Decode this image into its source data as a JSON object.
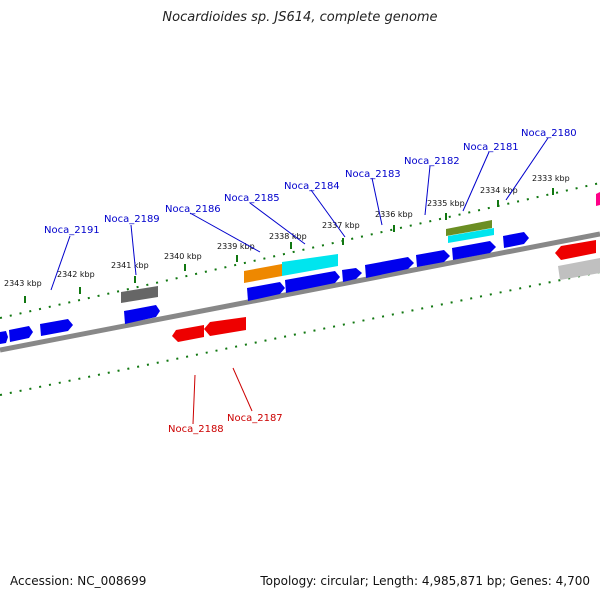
{
  "title": "Nocardioides sp. JS614, complete genome",
  "footer": {
    "accession": "Accession: NC_008699",
    "topology": "Topology: circular; Length: 4,985,871 bp; Genes: 4,700"
  },
  "colors": {
    "forward_gene": "#0000ee",
    "reverse_gene": "#ee0000",
    "backbone": "#888888",
    "tick_marks": "#117711",
    "gray_feature": "#666666",
    "cyan_feature": "#00e5ee",
    "orange_feature": "#ee8800",
    "olive_feature": "#6b8e23",
    "magenta_feature": "#ff0088",
    "label_forward": "#0000cc",
    "label_reverse": "#cc0000"
  },
  "scale_labels": [
    "2343 kbp",
    "2342 kbp",
    "2341 kbp",
    "2340 kbp",
    "2339 kbp",
    "2338 kbp",
    "2337 kbp",
    "2336 kbp",
    "2335 kbp",
    "2334 kbp",
    "2333 kbp"
  ],
  "gene_labels": {
    "forward": [
      "Noca_2191",
      "Noca_2189",
      "Noca_2186",
      "Noca_2185",
      "Noca_2184",
      "Noca_2183",
      "Noca_2182",
      "Noca_2181",
      "Noca_2180"
    ],
    "reverse": [
      "Noca_2188",
      "Noca_2187"
    ]
  }
}
